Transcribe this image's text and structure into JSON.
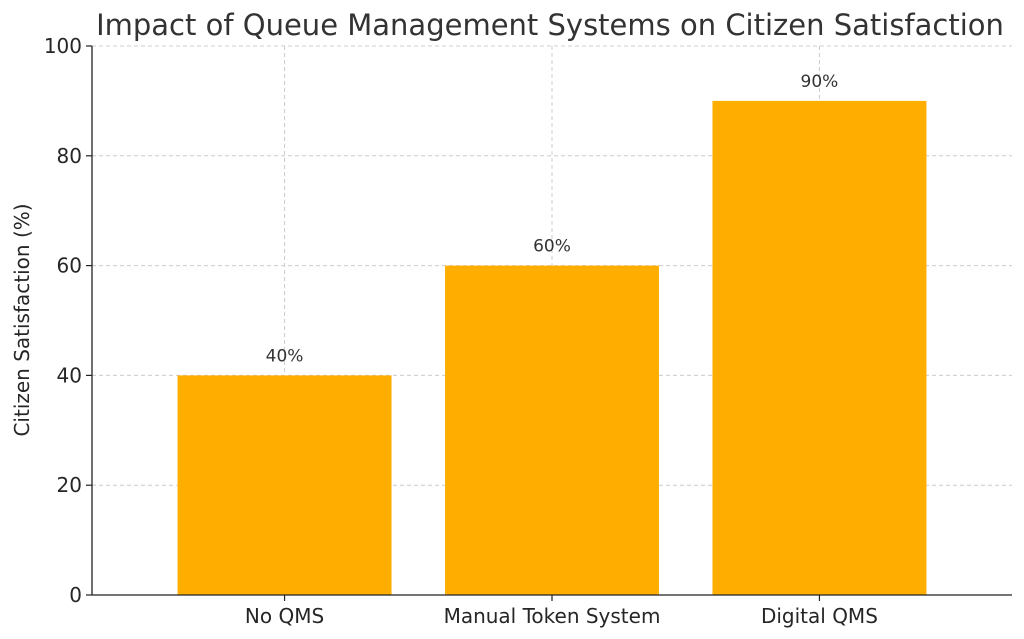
{
  "chart_data": {
    "type": "bar",
    "title": "Impact of Queue Management Systems on Citizen Satisfaction",
    "xlabel": "",
    "ylabel": "Citizen Satisfaction (%)",
    "categories": [
      "No QMS",
      "Manual Token System",
      "Digital QMS"
    ],
    "values": [
      40,
      60,
      90
    ],
    "data_labels": [
      "40%",
      "60%",
      "90%"
    ],
    "ylim": [
      0,
      100
    ],
    "yticks": [
      0,
      20,
      40,
      60,
      80,
      100
    ],
    "grid": true,
    "bar_color": "#FFAE00"
  }
}
